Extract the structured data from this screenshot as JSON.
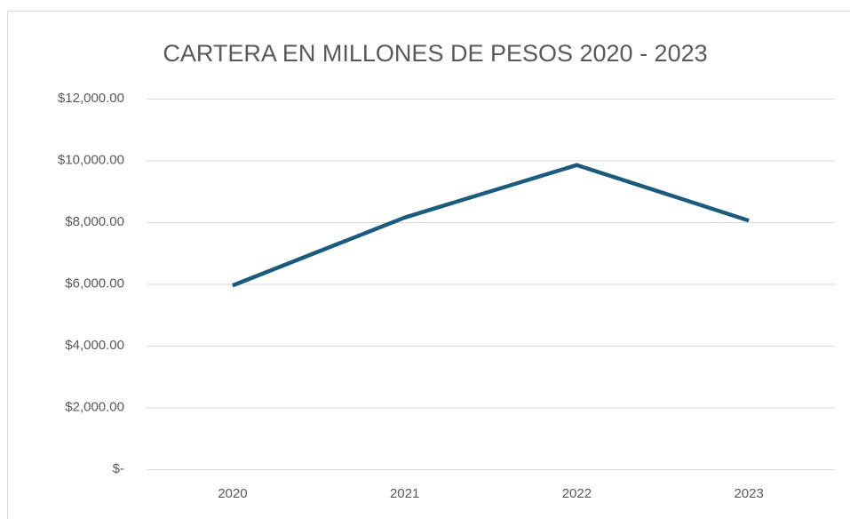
{
  "chart_data": {
    "type": "line",
    "title": "CARTERA EN MILLONES DE PESOS 2020 - 2023",
    "categories": [
      "2020",
      "2021",
      "2022",
      "2023"
    ],
    "values": [
      5950,
      8150,
      9850,
      8050
    ],
    "color": "#1c5b7c",
    "ylim": [
      0,
      12000
    ],
    "yticks": [
      {
        "value": 0,
        "label": "$-"
      },
      {
        "value": 2000,
        "label": "$2,000.00"
      },
      {
        "value": 4000,
        "label": "$4,000.00"
      },
      {
        "value": 6000,
        "label": "$6,000.00"
      },
      {
        "value": 8000,
        "label": "$8,000.00"
      },
      {
        "value": 10000,
        "label": "$10,000.00"
      },
      {
        "value": 12000,
        "label": "$12,000.00"
      }
    ],
    "grid": true
  }
}
